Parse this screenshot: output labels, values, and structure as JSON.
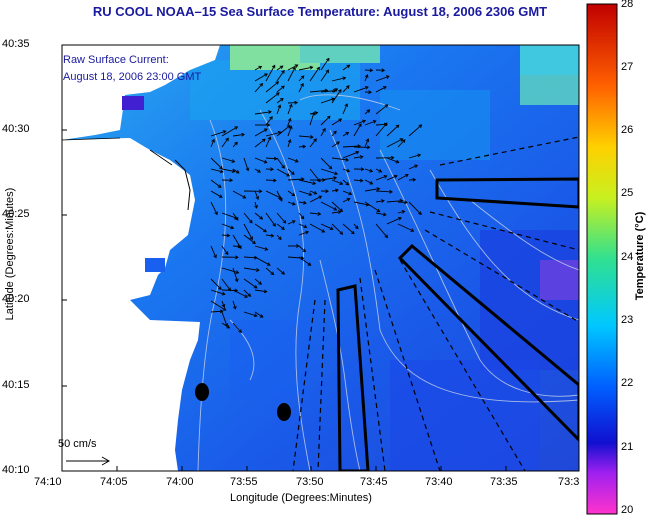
{
  "title": "RU COOL  NOAA–15  Sea Surface Temperature:  August 18, 2006 2306 GMT",
  "legend": {
    "line1": "Raw Surface Current:",
    "line2": "August 18, 2006 23:00 GMT"
  },
  "scale_label": "50 cm/s",
  "axes": {
    "xlabel": "Longitude (Degrees:Minutes)",
    "ylabel": "Latitude (Degrees:Minutes)",
    "xticks": [
      "74:10",
      "74:05",
      "74:00",
      "73:55",
      "73:50",
      "73:45",
      "73:40",
      "73:35",
      "73:3"
    ],
    "yticks": [
      "40:35",
      "40:30",
      "40:25",
      "40:20",
      "40:15",
      "40:10"
    ]
  },
  "colorbar": {
    "title": "Temperature (°C)",
    "ticks": [
      "28",
      "27",
      "26",
      "25",
      "24",
      "23",
      "22",
      "21",
      "20"
    ],
    "min": 20,
    "max": 28
  },
  "colors": {
    "ocean": "#1e6bf0",
    "title": "#1a1aa0"
  }
}
